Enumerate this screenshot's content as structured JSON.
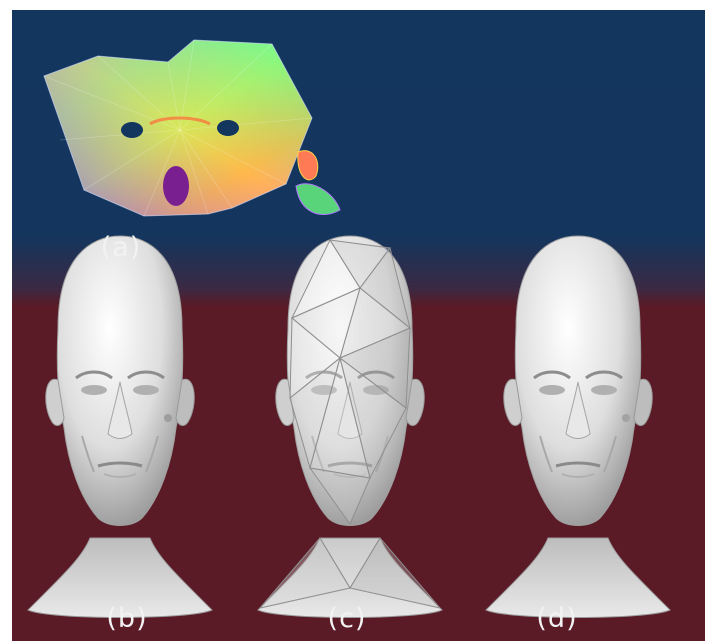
{
  "figure": {
    "colors": {
      "top_background": "#13365f",
      "bottom_background": "#5a1a26",
      "mesh_surface": "#e4e4e4",
      "label_text": "#f2f2f2"
    },
    "panels": [
      {
        "key": "a",
        "label": "(a)",
        "depicts": "colorful-uv-atlas"
      },
      {
        "key": "b",
        "label": "(b)",
        "depicts": "smooth-head-mesh"
      },
      {
        "key": "c",
        "label": "(c)",
        "depicts": "faceted-low-poly-head-mesh"
      },
      {
        "key": "d",
        "label": "(d)",
        "depicts": "smooth-head-mesh"
      }
    ]
  }
}
